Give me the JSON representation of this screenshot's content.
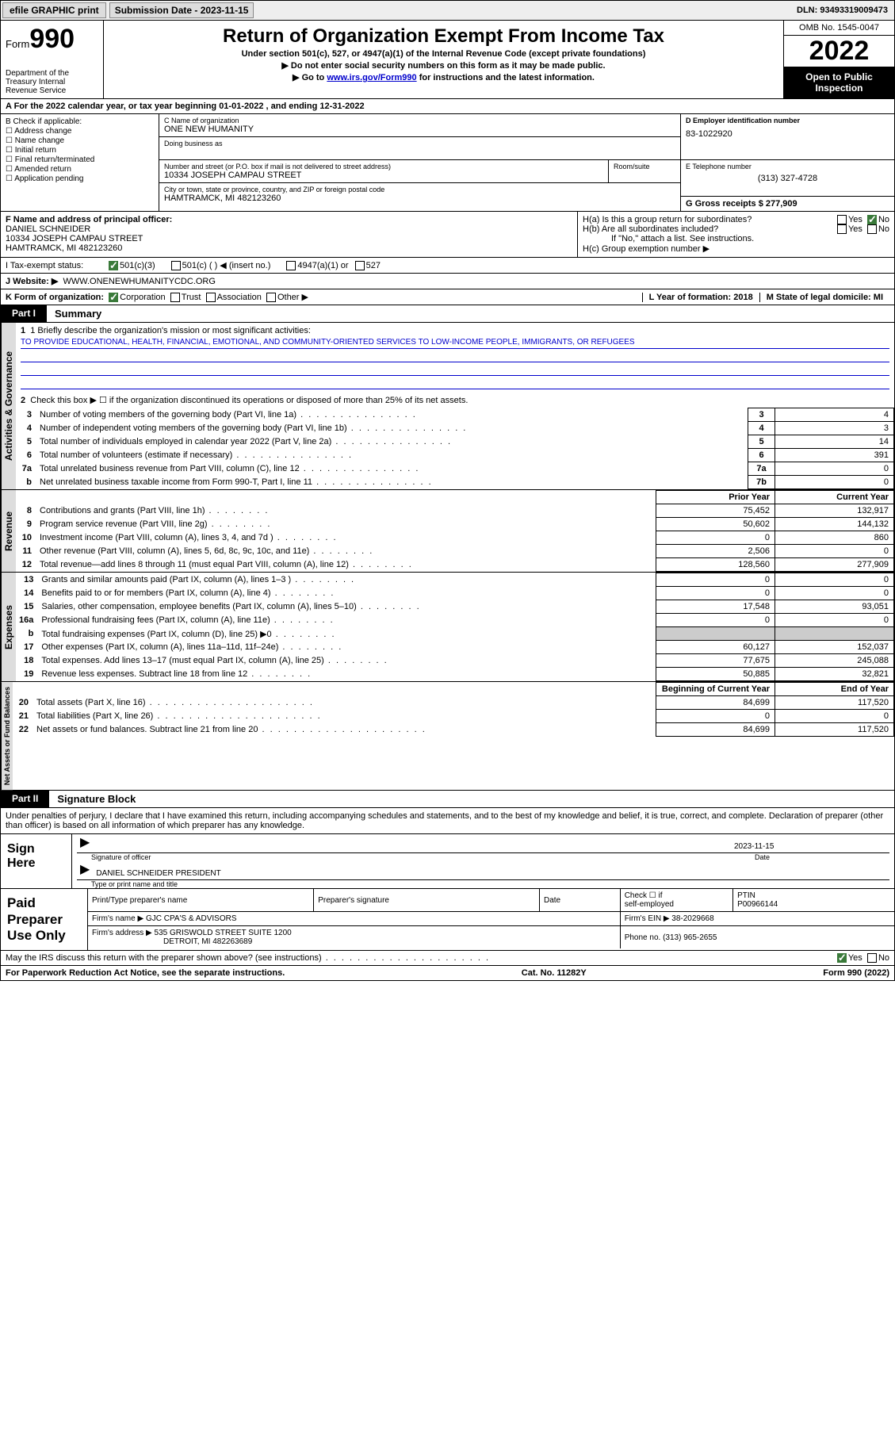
{
  "topbar": {
    "efile": "efile GRAPHIC print",
    "submission_label": "Submission Date - 2023-11-15",
    "dln": "DLN: 93493319009473"
  },
  "header": {
    "form_label": "Form",
    "form_num": "990",
    "dept": "Department of the Treasury Internal Revenue Service",
    "title": "Return of Organization Exempt From Income Tax",
    "subtitle": "Under section 501(c), 527, or 4947(a)(1) of the Internal Revenue Code (except private foundations)",
    "note1": "▶ Do not enter social security numbers on this form as it may be made public.",
    "note2_a": "▶ Go to ",
    "note2_link": "www.irs.gov/Form990",
    "note2_b": " for instructions and the latest information.",
    "omb": "OMB No. 1545-0047",
    "year": "2022",
    "open": "Open to Public Inspection"
  },
  "calyear": "A For the 2022 calendar year, or tax year beginning 01-01-2022    , and ending 12-31-2022",
  "secB": {
    "label": "B Check if applicable:",
    "opts": [
      "Address change",
      "Name change",
      "Initial return",
      "Final return/terminated",
      "Amended return",
      "Application pending"
    ]
  },
  "secC": {
    "name_label": "C Name of organization",
    "name": "ONE NEW HUMANITY",
    "dba_label": "Doing business as",
    "street_label": "Number and street (or P.O. box if mail is not delivered to street address)",
    "room_label": "Room/suite",
    "street": "10334 JOSEPH CAMPAU STREET",
    "city_label": "City or town, state or province, country, and ZIP or foreign postal code",
    "city": "HAMTRAMCK, MI  482123260"
  },
  "secD": {
    "label": "D Employer identification number",
    "ein": "83-1022920"
  },
  "secE": {
    "label": "E Telephone number",
    "phone": "(313) 327-4728"
  },
  "secG": {
    "label": "G Gross receipts $ 277,909"
  },
  "secF": {
    "label": "F  Name and address of principal officer:",
    "name": "DANIEL SCHNEIDER",
    "addr1": "10334 JOSEPH CAMPAU STREET",
    "addr2": "HAMTRAMCK, MI  482123260"
  },
  "secH": {
    "a": "H(a)  Is this a group return for subordinates?",
    "b": "H(b)  Are all subordinates included?",
    "bnote": "If \"No,\" attach a list. See instructions.",
    "c": "H(c)  Group exemption number ▶",
    "yes": "Yes",
    "no": "No"
  },
  "secI": {
    "label": "I   Tax-exempt status:",
    "o1": "501(c)(3)",
    "o2": "501(c) (  ) ◀ (insert no.)",
    "o3": "4947(a)(1) or",
    "o4": "527"
  },
  "secJ": {
    "label": "J   Website: ▶",
    "url": "WWW.ONENEWHUMANITYCDC.ORG"
  },
  "secK": {
    "label": "K Form of organization:",
    "o1": "Corporation",
    "o2": "Trust",
    "o3": "Association",
    "o4": "Other ▶"
  },
  "secL": {
    "label": "L Year of formation: 2018"
  },
  "secM": {
    "label": "M State of legal domicile: MI"
  },
  "part1": {
    "tab": "Part I",
    "title": "Summary"
  },
  "summary": {
    "q1_label": "1  Briefly describe the organization's mission or most significant activities:",
    "q1_text": "TO PROVIDE EDUCATIONAL, HEALTH, FINANCIAL, EMOTIONAL, AND COMMUNITY-ORIENTED SERVICES TO LOW-INCOME PEOPLE, IMMIGRANTS, OR REFUGEES",
    "q2": "Check this box ▶ ☐ if the organization discontinued its operations or disposed of more than 25% of its net assets.",
    "rows": [
      {
        "n": "3",
        "d": "Number of voting members of the governing body (Part VI, line 1a)",
        "box": "3",
        "v": "4"
      },
      {
        "n": "4",
        "d": "Number of independent voting members of the governing body (Part VI, line 1b)",
        "box": "4",
        "v": "3"
      },
      {
        "n": "5",
        "d": "Total number of individuals employed in calendar year 2022 (Part V, line 2a)",
        "box": "5",
        "v": "14"
      },
      {
        "n": "6",
        "d": "Total number of volunteers (estimate if necessary)",
        "box": "6",
        "v": "391"
      },
      {
        "n": "7a",
        "d": "Total unrelated business revenue from Part VIII, column (C), line 12",
        "box": "7a",
        "v": "0"
      },
      {
        "n": "b",
        "d": "Net unrelated business taxable income from Form 990-T, Part I, line 11",
        "box": "7b",
        "v": "0"
      }
    ],
    "hdr_prior": "Prior Year",
    "hdr_curr": "Current Year",
    "revenue": [
      {
        "n": "8",
        "d": "Contributions and grants (Part VIII, line 1h)",
        "p": "75,452",
        "c": "132,917"
      },
      {
        "n": "9",
        "d": "Program service revenue (Part VIII, line 2g)",
        "p": "50,602",
        "c": "144,132"
      },
      {
        "n": "10",
        "d": "Investment income (Part VIII, column (A), lines 3, 4, and 7d )",
        "p": "0",
        "c": "860"
      },
      {
        "n": "11",
        "d": "Other revenue (Part VIII, column (A), lines 5, 6d, 8c, 9c, 10c, and 11e)",
        "p": "2,506",
        "c": "0"
      },
      {
        "n": "12",
        "d": "Total revenue—add lines 8 through 11 (must equal Part VIII, column (A), line 12)",
        "p": "128,560",
        "c": "277,909"
      }
    ],
    "expenses": [
      {
        "n": "13",
        "d": "Grants and similar amounts paid (Part IX, column (A), lines 1–3 )",
        "p": "0",
        "c": "0"
      },
      {
        "n": "14",
        "d": "Benefits paid to or for members (Part IX, column (A), line 4)",
        "p": "0",
        "c": "0"
      },
      {
        "n": "15",
        "d": "Salaries, other compensation, employee benefits (Part IX, column (A), lines 5–10)",
        "p": "17,548",
        "c": "93,051"
      },
      {
        "n": "16a",
        "d": "Professional fundraising fees (Part IX, column (A), line 11e)",
        "p": "0",
        "c": "0"
      },
      {
        "n": "b",
        "d": "Total fundraising expenses (Part IX, column (D), line 25) ▶0",
        "p": "",
        "c": "",
        "shade": true
      },
      {
        "n": "17",
        "d": "Other expenses (Part IX, column (A), lines 11a–11d, 11f–24e)",
        "p": "60,127",
        "c": "152,037"
      },
      {
        "n": "18",
        "d": "Total expenses. Add lines 13–17 (must equal Part IX, column (A), line 25)",
        "p": "77,675",
        "c": "245,088"
      },
      {
        "n": "19",
        "d": "Revenue less expenses. Subtract line 18 from line 12",
        "p": "50,885",
        "c": "32,821"
      }
    ],
    "hdr_beg": "Beginning of Current Year",
    "hdr_end": "End of Year",
    "netassets": [
      {
        "n": "20",
        "d": "Total assets (Part X, line 16)",
        "p": "84,699",
        "c": "117,520"
      },
      {
        "n": "21",
        "d": "Total liabilities (Part X, line 26)",
        "p": "0",
        "c": "0"
      },
      {
        "n": "22",
        "d": "Net assets or fund balances. Subtract line 21 from line 20",
        "p": "84,699",
        "c": "117,520"
      }
    ]
  },
  "vtabs": {
    "ag": "Activities & Governance",
    "rev": "Revenue",
    "exp": "Expenses",
    "na": "Net Assets or Fund Balances"
  },
  "part2": {
    "tab": "Part II",
    "title": "Signature Block"
  },
  "sig": {
    "intro": "Under penalties of perjury, I declare that I have examined this return, including accompanying schedules and statements, and to the best of my knowledge and belief, it is true, correct, and complete. Declaration of preparer (other than officer) is based on all information of which preparer has any knowledge.",
    "sign_here": "Sign Here",
    "sig_officer": "Signature of officer",
    "date_lbl": "Date",
    "date": "2023-11-15",
    "name": "DANIEL SCHNEIDER  PRESIDENT",
    "name_lbl": "Type or print name and title"
  },
  "prep": {
    "label": "Paid Preparer Use Only",
    "h1": "Print/Type preparer's name",
    "h2": "Preparer's signature",
    "h3": "Date",
    "h4a": "Check ☐ if",
    "h4b": "self-employed",
    "h5": "PTIN",
    "ptin": "P00966144",
    "firm_lbl": "Firm's name    ▶",
    "firm": "GJC CPA'S & ADVISORS",
    "ein_lbl": "Firm's EIN ▶",
    "ein": "38-2029668",
    "addr_lbl": "Firm's address ▶",
    "addr1": "535 GRISWOLD STREET SUITE 1200",
    "addr2": "DETROIT, MI  482263689",
    "phone_lbl": "Phone no.",
    "phone": "(313) 965-2655"
  },
  "discuss": {
    "q": "May the IRS discuss this return with the preparer shown above? (see instructions)",
    "yes": "Yes",
    "no": "No"
  },
  "footer": {
    "l": "For Paperwork Reduction Act Notice, see the separate instructions.",
    "c": "Cat. No. 11282Y",
    "r": "Form 990 (2022)"
  }
}
